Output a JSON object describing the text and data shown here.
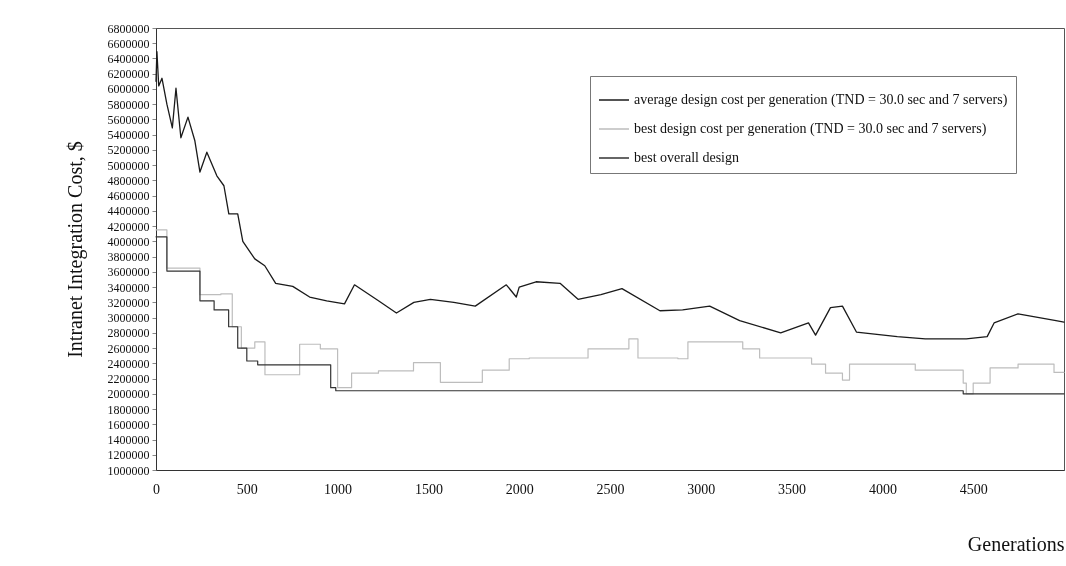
{
  "chart_data": {
    "type": "line",
    "xlabel": "Generations",
    "ylabel": "Intranet Integration Cost, $",
    "xlim": [
      0,
      5000
    ],
    "xticks": [
      0,
      500,
      1000,
      1500,
      2000,
      2500,
      3000,
      3500,
      4000,
      4500
    ],
    "ylim": [
      1000000,
      6800000
    ],
    "yticks": [
      1000000,
      1200000,
      1400000,
      1600000,
      1800000,
      2000000,
      2200000,
      2400000,
      2600000,
      2800000,
      3000000,
      3200000,
      3400000,
      3600000,
      3800000,
      4000000,
      4200000,
      4400000,
      4600000,
      4800000,
      5000000,
      5200000,
      5400000,
      5600000,
      5800000,
      6000000,
      6200000,
      6400000,
      6600000,
      6800000
    ],
    "legend": "top right",
    "series": [
      {
        "name": "average design cost per generation (TND = 30.0 sec and 7 servers)",
        "type": "line",
        "color": "#1a1a1a",
        "x": [
          0,
          5,
          15,
          33,
          60,
          90,
          110,
          137,
          176,
          214,
          242,
          280,
          335,
          374,
          401,
          450,
          478,
          544,
          599,
          659,
          753,
          846,
          940,
          1038,
          1093,
          1225,
          1324,
          1420,
          1511,
          1640,
          1758,
          1929,
          1984,
          2000,
          2093,
          2225,
          2324,
          2450,
          2566,
          2775,
          2900,
          3049,
          3214,
          3440,
          3593,
          3632,
          3714,
          3780,
          3857,
          4082,
          4236,
          4462,
          4577,
          4615,
          4747,
          4956,
          5000
        ],
        "values": [
          6100000,
          6490000,
          6040000,
          6140000,
          5800000,
          5490000,
          6010000,
          5360000,
          5630000,
          5320000,
          4910000,
          5170000,
          4860000,
          4730000,
          4360000,
          4360000,
          4000000,
          3770000,
          3680000,
          3450000,
          3410000,
          3270000,
          3220000,
          3180000,
          3430000,
          3220000,
          3060000,
          3200000,
          3240000,
          3200000,
          3150000,
          3430000,
          3270000,
          3400000,
          3470000,
          3450000,
          3240000,
          3300000,
          3380000,
          3090000,
          3100000,
          3150000,
          2960000,
          2800000,
          2930000,
          2770000,
          3130000,
          3150000,
          2810000,
          2750000,
          2720000,
          2720000,
          2750000,
          2930000,
          3050000,
          2960000,
          2940000
        ]
      },
      {
        "name": "best design cost per generation (TND = 30.0 sec and 7 servers)",
        "type": "step",
        "color": "#bdbdbd",
        "x": [
          0,
          60,
          242,
          357,
          420,
          470,
          544,
          600,
          791,
          905,
          1000,
          1077,
          1225,
          1418,
          1566,
          1797,
          1945,
          2055,
          2379,
          2604,
          2654,
          2874,
          2929,
          3231,
          3324,
          3610,
          3687,
          3780,
          3819,
          4181,
          4445,
          4462,
          4500,
          4593,
          4747,
          4945,
          5000
        ],
        "values": [
          4150000,
          3650000,
          3300000,
          3310000,
          2880000,
          2600000,
          2680000,
          2250000,
          2650000,
          2590000,
          2080000,
          2270000,
          2300000,
          2410000,
          2150000,
          2310000,
          2460000,
          2470000,
          2590000,
          2720000,
          2470000,
          2460000,
          2680000,
          2590000,
          2470000,
          2390000,
          2270000,
          2180000,
          2390000,
          2310000,
          2140000,
          2000000,
          2140000,
          2340000,
          2390000,
          2280000,
          2280000
        ]
      },
      {
        "name": "best overall design",
        "type": "step",
        "color": "#333333",
        "x": [
          0,
          60,
          242,
          320,
          400,
          450,
          500,
          560,
          962,
          990,
          4445,
          5000
        ],
        "values": [
          4060000,
          3610000,
          3220000,
          3100000,
          2880000,
          2600000,
          2430000,
          2380000,
          2080000,
          2040000,
          2000000,
          2000000
        ]
      }
    ]
  }
}
